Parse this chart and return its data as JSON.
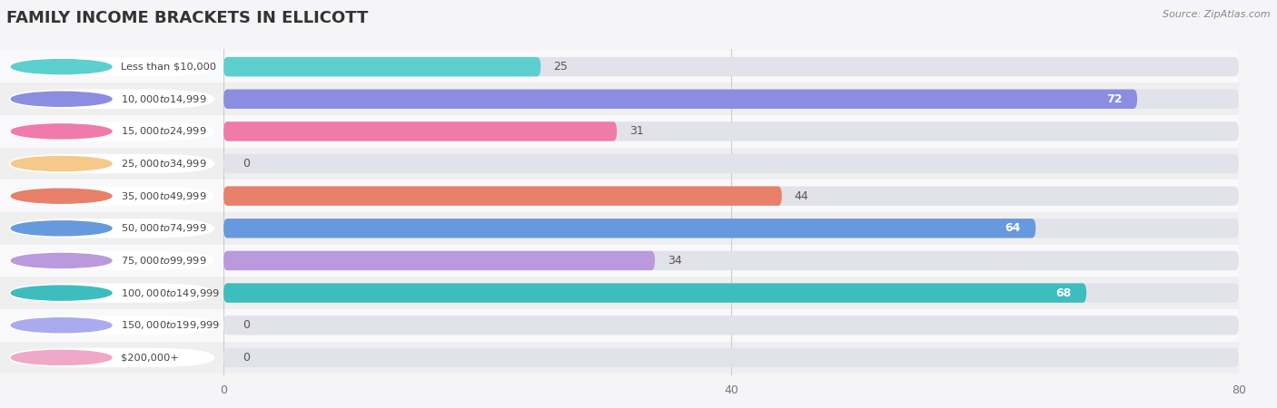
{
  "title": "FAMILY INCOME BRACKETS IN ELLICOTT",
  "source": "Source: ZipAtlas.com",
  "categories": [
    "Less than $10,000",
    "$10,000 to $14,999",
    "$15,000 to $24,999",
    "$25,000 to $34,999",
    "$35,000 to $49,999",
    "$50,000 to $74,999",
    "$75,000 to $99,999",
    "$100,000 to $149,999",
    "$150,000 to $199,999",
    "$200,000+"
  ],
  "values": [
    25,
    72,
    31,
    0,
    44,
    64,
    34,
    68,
    0,
    0
  ],
  "bar_colors": [
    "#5ecfcf",
    "#8b8de0",
    "#f07aaa",
    "#f5c98a",
    "#e8806a",
    "#6699dd",
    "#bb99dd",
    "#3dbdbd",
    "#aaaaee",
    "#f0a8c8"
  ],
  "xlim": [
    0,
    80
  ],
  "xticks": [
    0,
    40,
    80
  ],
  "row_colors": [
    "#f9f9fb",
    "#efefef"
  ],
  "background_color": "#f5f5f8",
  "bar_bg_color": "#e2e2ea",
  "title_fontsize": 13,
  "value_fontsize": 9
}
